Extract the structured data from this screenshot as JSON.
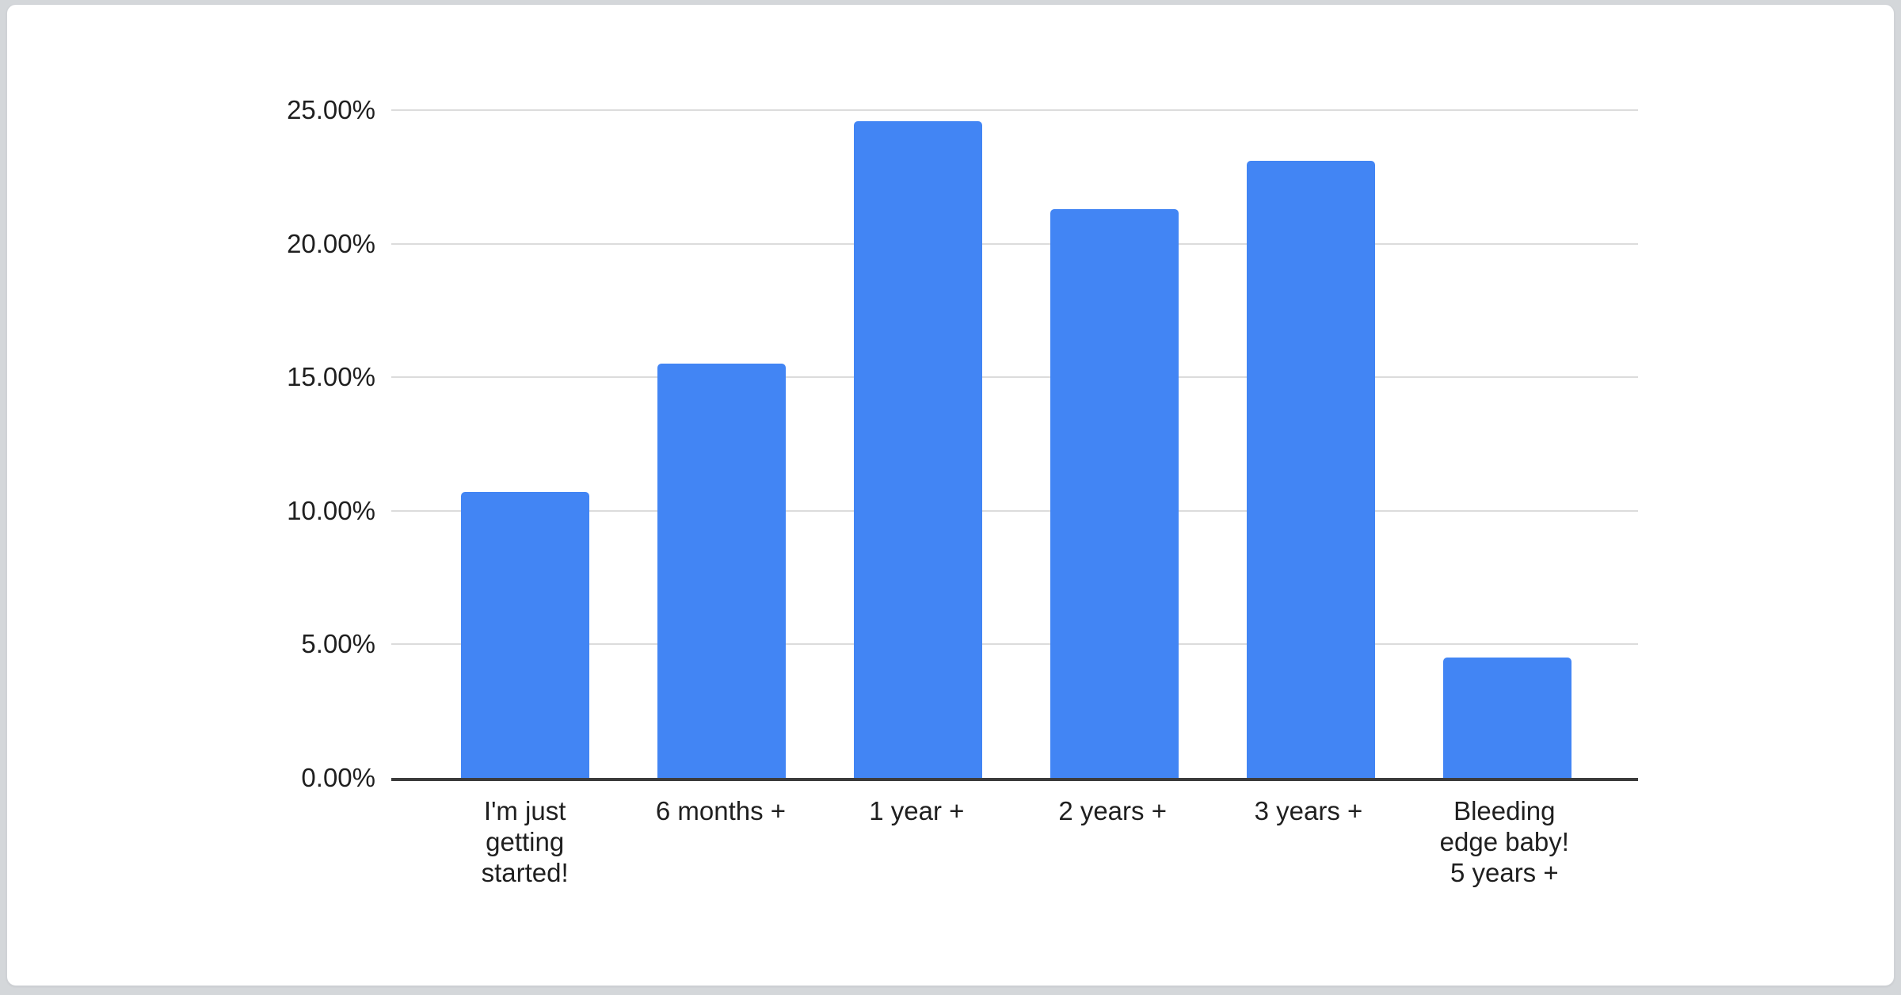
{
  "page": {
    "background_color": "#d4d7da",
    "card_color": "#ffffff"
  },
  "chart_data": {
    "type": "bar",
    "title": "",
    "categories": [
      "I'm just\ngetting\nstarted!",
      "6 months +",
      "1 year +",
      "2 years +",
      "3 years +",
      "Bleeding\nedge baby!\n5 years +"
    ],
    "values": [
      10.7,
      15.5,
      24.6,
      21.3,
      23.1,
      4.5
    ],
    "y_tick_labels": [
      "0.00%",
      "5.00%",
      "10.00%",
      "15.00%",
      "20.00%",
      "25.00%"
    ],
    "y_tick_values": [
      0,
      5,
      10,
      15,
      20,
      25
    ],
    "xlabel": "",
    "ylabel": "",
    "ylim": [
      0,
      25
    ],
    "grid": true,
    "legend": "none",
    "bar_color": "#4285f4",
    "grid_color": "#dcdcdc",
    "axis_color": "#3b3b3b",
    "label_color": "#1f1f1f"
  }
}
